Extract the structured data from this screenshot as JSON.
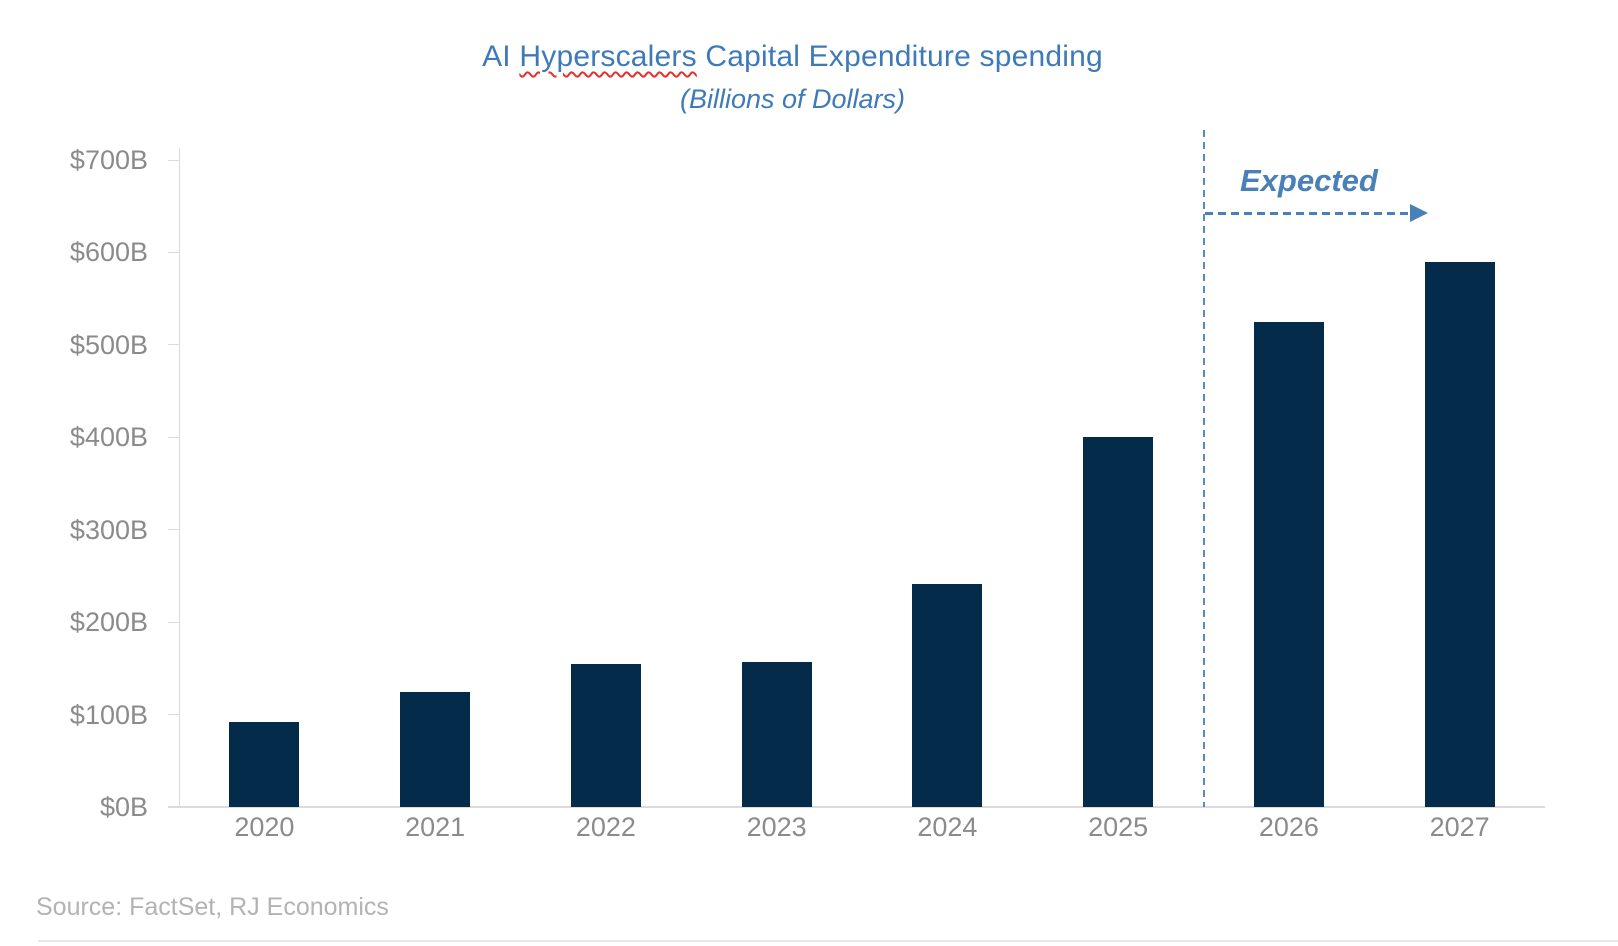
{
  "chart_data": {
    "type": "bar",
    "title": "AI Hyperscalers Capital Expenditure spending",
    "title_parts": {
      "pre": "AI ",
      "misspelled": "Hyperscalers",
      "post": " Capital Expenditure spending"
    },
    "subtitle": "(Billions of Dollars)",
    "categories": [
      "2020",
      "2021",
      "2022",
      "2023",
      "2024",
      "2025",
      "2026",
      "2027"
    ],
    "values": [
      92,
      124,
      155,
      157,
      241,
      400,
      525,
      590
    ],
    "ylabel": "",
    "xlabel": "",
    "ylim": [
      0,
      700
    ],
    "y_tick_labels_top_to_bottom": [
      "$700B",
      "$600B",
      "$500B",
      "$400B",
      "$300B",
      "$200B",
      "$100B",
      "$0B"
    ],
    "grid": false,
    "legend": "none",
    "annotation": {
      "label": "Expected",
      "divider_between": [
        "2025",
        "2026"
      ],
      "arrow_direction": "right"
    }
  },
  "source": {
    "text": "Source: FactSet, RJ Economics"
  },
  "colors": {
    "bar_fill": "#052B4B",
    "title_blue": "#3E7AB8",
    "annotation_blue": "#4A80B8",
    "divider_blue": "#578BC1",
    "axis_gray": "#DBDBDB",
    "tick_label_gray": "#8B8B8B",
    "source_gray": "#B3B3B3",
    "squiggle_red": "#E5312B",
    "bottom_edge_gray": "#E7E7E9"
  }
}
